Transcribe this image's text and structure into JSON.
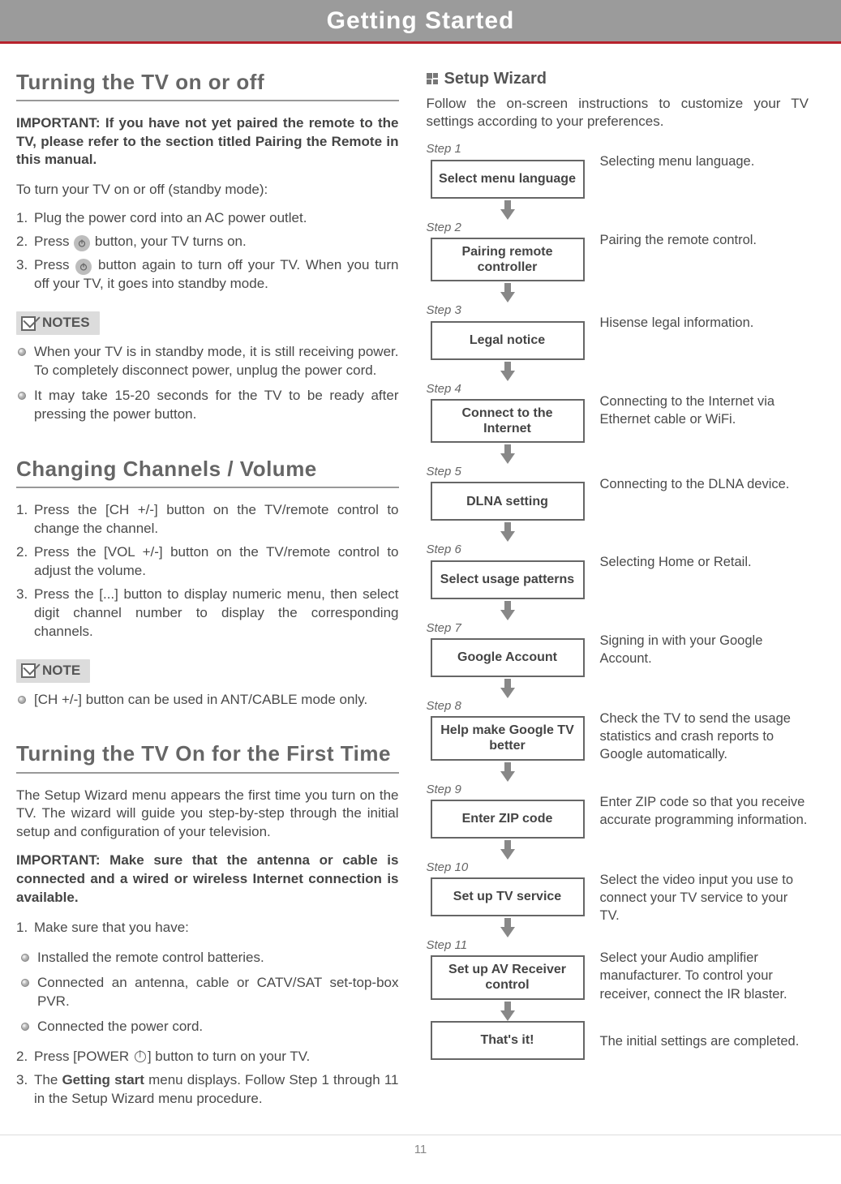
{
  "header": {
    "title": "Getting Started"
  },
  "left": {
    "sec1": {
      "title": "Turning the TV on or off",
      "important": "IMPORTANT: If you have not yet paired the remote to the TV, please refer to the section titled Pairing the Remote in this manual.",
      "intro": "To turn your TV on or off (standby mode):",
      "steps": [
        {
          "n": "1.",
          "t": "Plug the power cord into an AC power outlet."
        },
        {
          "n": "2.",
          "t_before": "Press ",
          "t_after": " button, your TV turns on.",
          "icon": true
        },
        {
          "n": "3.",
          "t_before": "Press ",
          "t_after": " button again to turn off your TV. When you turn off your TV, it goes into standby mode.",
          "icon": true
        }
      ],
      "notes_label": "NOTES",
      "notes": [
        "When your TV is in standby mode, it is still receiving power. To completely disconnect power, unplug the power cord.",
        "It may take 15-20 seconds for the TV to be ready after pressing the power button."
      ]
    },
    "sec2": {
      "title": "Changing Channels / Volume",
      "steps": [
        {
          "n": "1.",
          "t": "Press the [CH +/-] button on the TV/remote control to change the channel."
        },
        {
          "n": "2.",
          "t": "Press the [VOL +/-] button on the TV/remote control to adjust the volume."
        },
        {
          "n": "3.",
          "t": "Press the [...] button to display numeric menu, then select digit channel number to display the corresponding channels."
        }
      ],
      "note_label": " NOTE",
      "note_items": [
        "[CH +/-] button can be used in ANT/CABLE mode only."
      ]
    },
    "sec3": {
      "title": "Turning the TV On for the First Time",
      "p1": "The Setup Wizard menu appears the first time you turn on the TV. The wizard will guide you step-by-step through the initial setup and configuration of your television.",
      "important": "IMPORTANT: Make sure that the antenna or cable is connected and a wired or wireless Internet connection is available.",
      "step1_label": "1.",
      "step1_text": "Make sure that you have:",
      "step1_bullets": [
        "Installed the remote control batteries.",
        "Connected an antenna, cable or CATV/SAT set-top-box PVR.",
        "Connected the power cord."
      ],
      "step2_label": "2.",
      "step2_before": "Press [POWER ",
      "step2_after": "] button to turn on your TV.",
      "step3_label": "3.",
      "step3_before": "The ",
      "step3_bold": "Getting start",
      "step3_after": " menu displays. Follow Step 1 through 11 in the Setup Wizard menu procedure."
    }
  },
  "right": {
    "heading": "Setup Wizard",
    "intro": "Follow the on-screen instructions to customize your TV settings according to your preferences.",
    "steps": [
      {
        "label": "Step 1",
        "box": "Select menu language",
        "desc": "Selecting menu language."
      },
      {
        "label": "Step 2",
        "box": "Pairing remote controller",
        "desc": "Pairing the remote control."
      },
      {
        "label": "Step 3",
        "box": "Legal notice",
        "desc": "Hisense legal information."
      },
      {
        "label": "Step 4",
        "box": "Connect to the Internet",
        "desc": "Connecting to the Internet via Ethernet cable or WiFi."
      },
      {
        "label": "Step 5",
        "box": "DLNA setting",
        "desc": "Connecting to the DLNA device."
      },
      {
        "label": "Step 6",
        "box": "Select usage patterns",
        "desc": "Selecting Home or Retail."
      },
      {
        "label": "Step 7",
        "box": "Google Account",
        "desc": "Signing in with your Google Account."
      },
      {
        "label": "Step 8",
        "box": "Help make Google TV better",
        "desc": "Check the TV to send the usage statistics and crash reports to Google automatically."
      },
      {
        "label": "Step 9",
        "box": "Enter ZIP code",
        "desc": "Enter ZIP code so that you receive accurate programming information."
      },
      {
        "label": "Step 10",
        "box": "Set up TV service",
        "desc": "Select the video input you use to connect your TV service to your TV."
      },
      {
        "label": "Step 11",
        "box": "Set up AV Receiver control",
        "desc": "Select your Audio amplifier manufacturer. To control your receiver, connect the IR blaster."
      },
      {
        "label": "",
        "box": "That's it!",
        "desc": "The initial settings are completed."
      }
    ]
  },
  "footer": {
    "page": "11"
  },
  "colors": {
    "header_bg": "#9b9b9b",
    "accent": "#b7222c",
    "text": "#4a4a4a",
    "box_border": "#666666",
    "note_bg": "#dcdcdc",
    "arrow": "#888888"
  }
}
